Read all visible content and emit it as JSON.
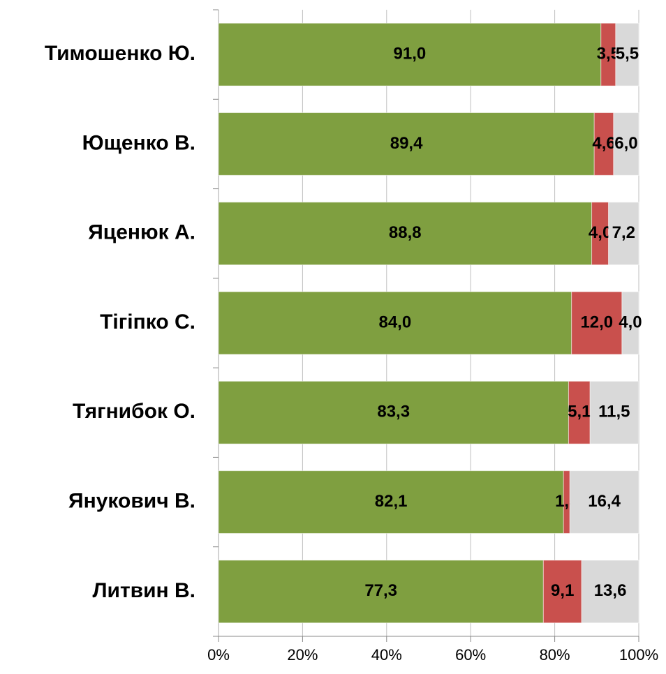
{
  "chart_data": {
    "type": "bar",
    "orientation": "horizontal",
    "stacked": true,
    "categories": [
      "Тимошенко Ю.",
      "Ющенко В.",
      "Яценюк А.",
      "Тігіпко С.",
      "Тягнибок О.",
      "Янукович В.",
      "Литвин В."
    ],
    "series": [
      {
        "color": "#7f9f40",
        "values": [
          91.0,
          89.4,
          88.8,
          84.0,
          83.3,
          82.1,
          77.3
        ],
        "value_labels": [
          "91,0",
          "89,4",
          "88,8",
          "84,0",
          "83,3",
          "82,1",
          "77,3"
        ]
      },
      {
        "color": "#c9504d",
        "values": [
          3.5,
          4.6,
          4.0,
          12.0,
          5.1,
          1.5,
          9.1
        ],
        "value_labels": [
          "3,5",
          "4,6",
          "4,0",
          "12,0",
          "5,1",
          "1,5",
          "9,1"
        ]
      },
      {
        "color": "#d9d9d9",
        "values": [
          5.5,
          6.0,
          7.2,
          4.0,
          11.5,
          16.4,
          13.6
        ],
        "value_labels": [
          "5,5",
          "6,0",
          "7,2",
          "4,0",
          "11,5",
          "16,4",
          "13,6"
        ]
      }
    ],
    "xlim": [
      0,
      100
    ],
    "xticks": [
      {
        "value": 0,
        "label": "0%"
      },
      {
        "value": 20,
        "label": "20%"
      },
      {
        "value": 40,
        "label": "40%"
      },
      {
        "value": 60,
        "label": "60%"
      },
      {
        "value": 80,
        "label": "80%"
      },
      {
        "value": 100,
        "label": "100%"
      }
    ],
    "grid": true
  }
}
